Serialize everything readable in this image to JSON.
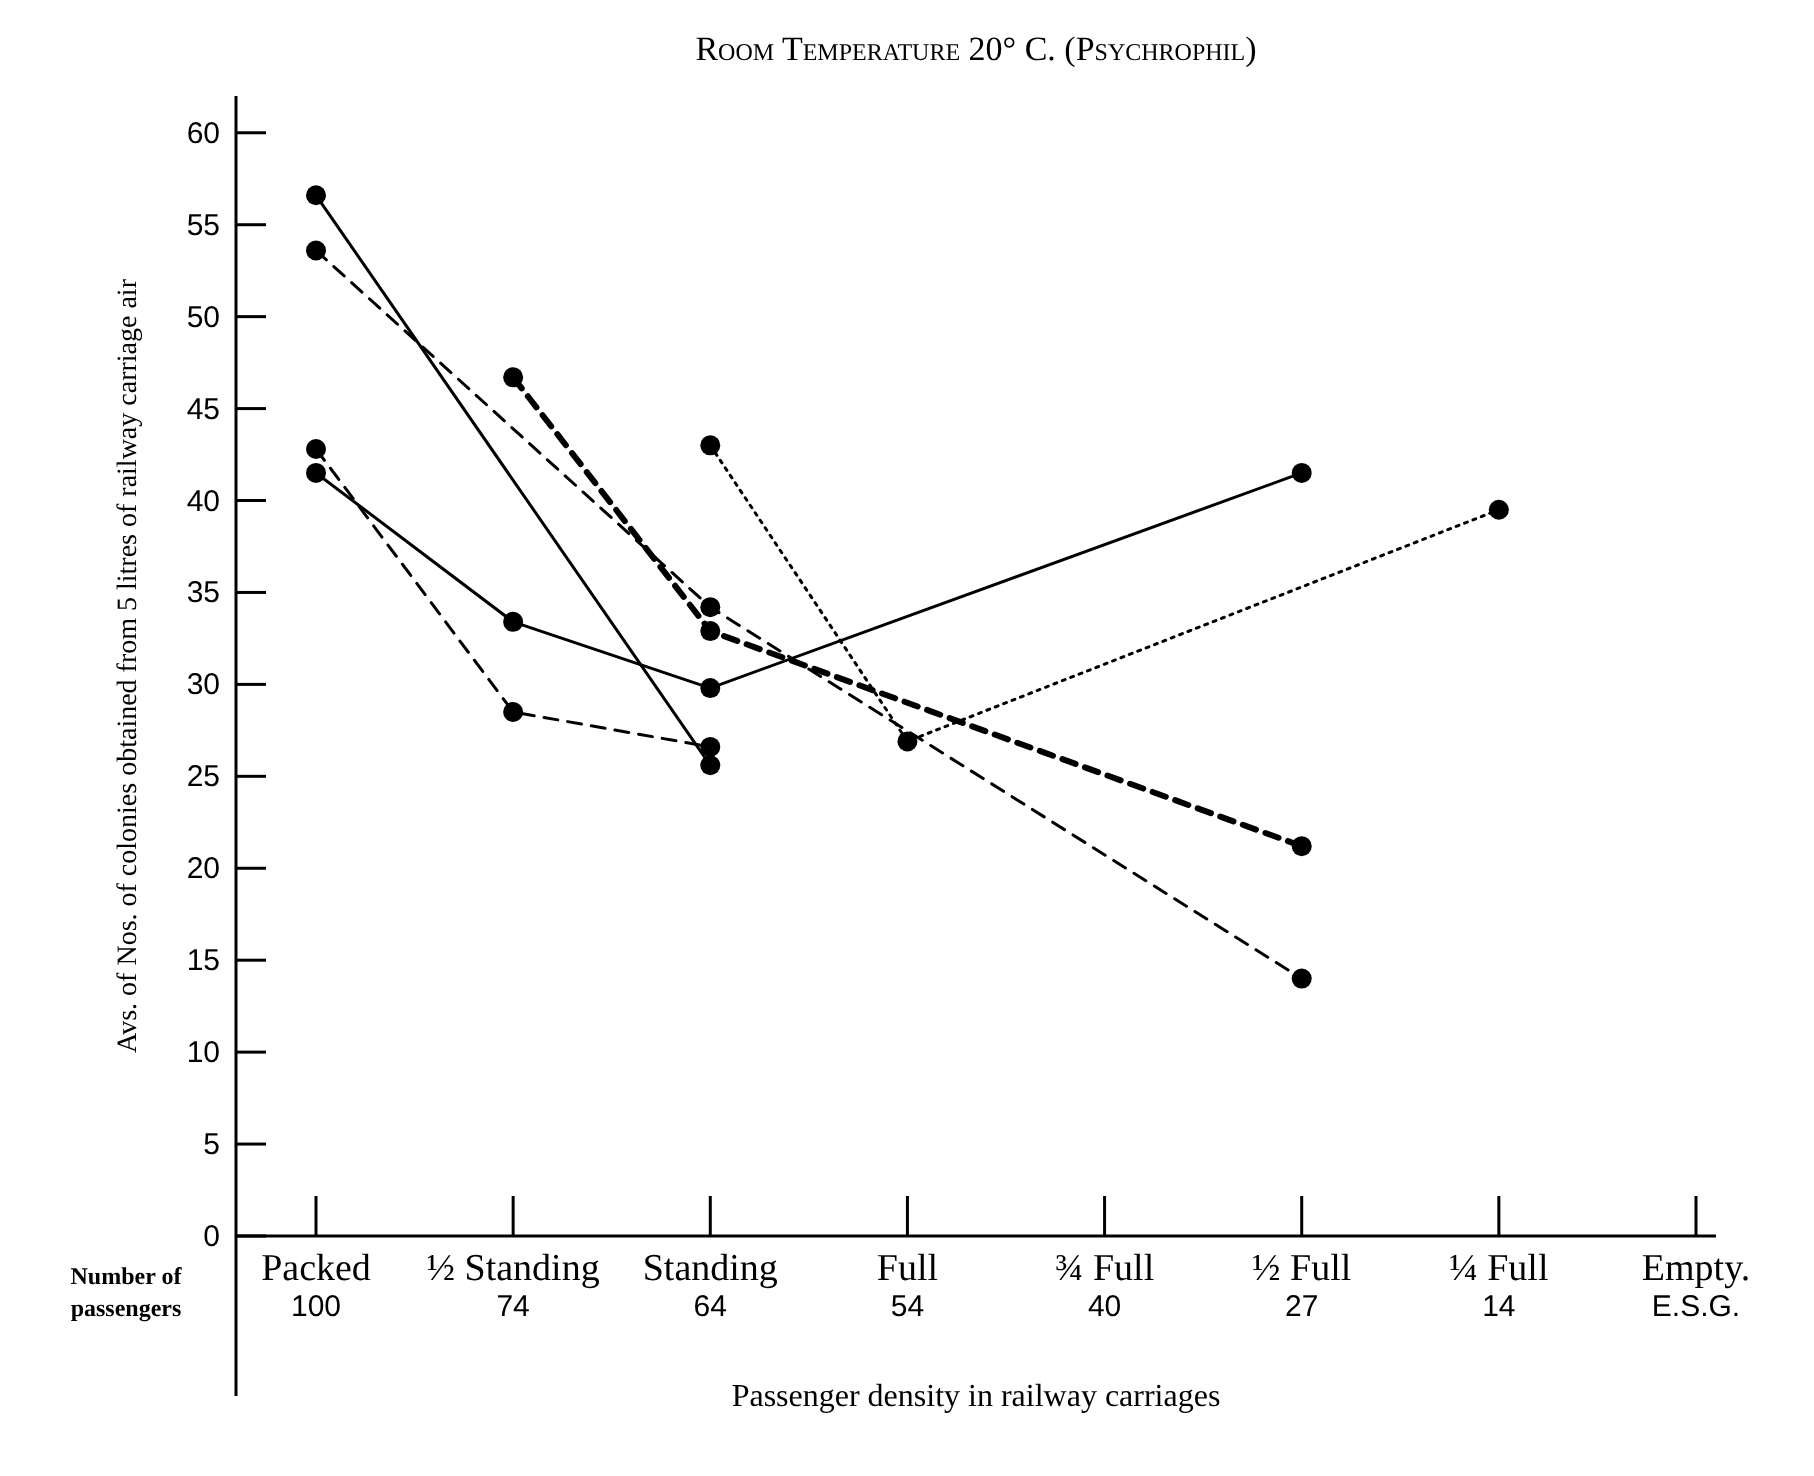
{
  "chart_data": {
    "type": "line",
    "title": "Room Temperature 20° C. (Psychrophil)",
    "xlabel": "Passenger density in railway carriages",
    "ylabel": "Avs. of Nos. of colonies obtained from 5 litres of railway carriage air",
    "categories": [
      "Packed\n100",
      "½ Standing\n74",
      "Standing\n64",
      "Full\n54",
      "¾ Full\n40",
      "½ Full\n27",
      "¼ Full\n14",
      "Empty.\nE.S.G."
    ],
    "series": [
      {
        "color": "#000000",
        "line_style": "solid",
        "values": [
          56.6,
          null,
          25.6,
          null,
          null,
          null,
          null,
          null
        ]
      },
      {
        "color": "#000000",
        "line_style": "dashed",
        "values": [
          53.6,
          null,
          34.2,
          null,
          null,
          14.0,
          null,
          null
        ]
      },
      {
        "color": "#000000",
        "line_style": "dashed",
        "values": [
          null,
          46.7,
          32.9,
          null,
          null,
          21.2,
          null,
          null
        ]
      },
      {
        "color": "#000000",
        "line_style": "solid",
        "values": [
          41.5,
          33.4,
          29.8,
          null,
          null,
          41.5,
          null,
          null
        ]
      },
      {
        "color": "#000000",
        "line_style": "dashed",
        "values": [
          42.8,
          28.5,
          26.6,
          null,
          null,
          null,
          null,
          null
        ]
      },
      {
        "color": "#000000",
        "line_style": "dotted",
        "values": [
          null,
          null,
          43.0,
          26.9,
          null,
          null,
          39.5,
          null
        ]
      }
    ],
    "ylim": [
      0,
      62
    ],
    "yticks": [
      0,
      5,
      10,
      15,
      20,
      25,
      30,
      35,
      40,
      45,
      50,
      55,
      60
    ],
    "marker": "circle",
    "annotations": [
      "Number of passengers"
    ]
  }
}
